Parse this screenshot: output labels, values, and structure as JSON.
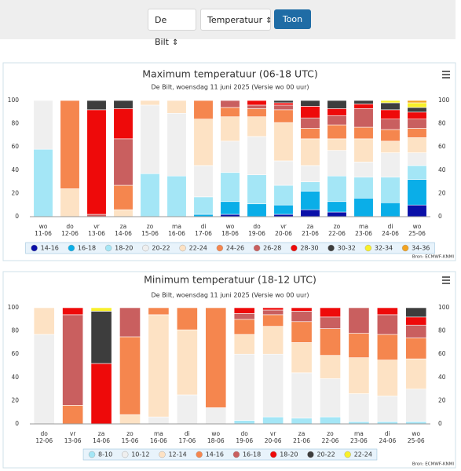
{
  "controls": {
    "location": "De Bilt",
    "variable": "Temperatuur",
    "button": "Toon"
  },
  "chart_data": [
    {
      "type": "stacked-bar",
      "title": "Maximum temperatuur (06-18 UTC)",
      "subtitle": "De Bilt, woensdag 11 juni 2025 (Versie wo 00 uur)",
      "credit": "Bron: ECMWF-KNMI",
      "categories": [
        [
          "wo",
          "11-06"
        ],
        [
          "do",
          "12-06"
        ],
        [
          "vr",
          "13-06"
        ],
        [
          "za",
          "14-06"
        ],
        [
          "zo",
          "15-06"
        ],
        [
          "ma",
          "16-06"
        ],
        [
          "di",
          "17-06"
        ],
        [
          "wo",
          "18-06"
        ],
        [
          "do",
          "19-06"
        ],
        [
          "vr",
          "20-06"
        ],
        [
          "za",
          "21-06"
        ],
        [
          "zo",
          "22-06"
        ],
        [
          "ma",
          "23-06"
        ],
        [
          "di",
          "24-06"
        ],
        [
          "wo",
          "25-06"
        ]
      ],
      "ylim": [
        0,
        100
      ],
      "yticks": [
        0,
        20,
        40,
        60,
        80,
        100
      ],
      "grid": false,
      "series": [
        {
          "name": "14-16",
          "color": "#0a10a8",
          "values": [
            0,
            0,
            0,
            0,
            0,
            0,
            0,
            2,
            0,
            2,
            6,
            4,
            0,
            0,
            10
          ]
        },
        {
          "name": "16-18",
          "color": "#0aaee8",
          "values": [
            0,
            0,
            0,
            0,
            0,
            0,
            2,
            11,
            11,
            8,
            16,
            9,
            16,
            12,
            22
          ]
        },
        {
          "name": "18-20",
          "color": "#a4e6f6",
          "values": [
            58,
            0,
            0,
            0,
            37,
            35,
            15,
            25,
            25,
            17,
            8,
            22,
            18,
            22,
            12
          ]
        },
        {
          "name": "20-22",
          "color": "#efefef",
          "values": [
            42,
            0,
            0,
            0,
            59,
            54,
            27,
            27,
            33,
            21,
            14,
            22,
            13,
            21,
            11
          ]
        },
        {
          "name": "22-24",
          "color": "#fde2c4",
          "values": [
            0,
            24,
            0,
            6,
            4,
            11,
            40,
            21,
            17,
            33,
            23,
            10,
            20,
            10,
            13
          ]
        },
        {
          "name": "24-26",
          "color": "#f5864e",
          "values": [
            0,
            76,
            0,
            21,
            0,
            0,
            16,
            8,
            7,
            11,
            9,
            12,
            10,
            10,
            8
          ]
        },
        {
          "name": "26-28",
          "color": "#c95f5f",
          "values": [
            0,
            0,
            2,
            40,
            0,
            0,
            0,
            6,
            3,
            4,
            9,
            8,
            16,
            9,
            8
          ]
        },
        {
          "name": "28-30",
          "color": "#ee0a0a",
          "values": [
            0,
            0,
            90,
            26,
            0,
            0,
            0,
            0,
            4,
            2,
            10,
            6,
            4,
            8,
            6
          ]
        },
        {
          "name": "30-32",
          "color": "#3d3d3d",
          "values": [
            0,
            0,
            8,
            7,
            0,
            0,
            0,
            0,
            0,
            2,
            5,
            7,
            3,
            6,
            4
          ]
        },
        {
          "name": "32-34",
          "color": "#f8f02a",
          "values": [
            0,
            0,
            0,
            0,
            0,
            0,
            0,
            0,
            0,
            0,
            0,
            0,
            0,
            2,
            4
          ]
        },
        {
          "name": "34-36",
          "color": "#f2a321",
          "values": [
            0,
            0,
            0,
            0,
            0,
            0,
            0,
            0,
            0,
            0,
            0,
            0,
            0,
            0,
            2
          ]
        }
      ]
    },
    {
      "type": "stacked-bar",
      "title": "Minimum temperatuur (18-12 UTC)",
      "subtitle": "De Bilt, woensdag 11 juni 2025 (Versie wo 00 uur)",
      "credit": "Bron: ECMWF-KNMI",
      "categories": [
        [
          "do",
          "12-06"
        ],
        [
          "vr",
          "13-06"
        ],
        [
          "za",
          "14-06"
        ],
        [
          "zo",
          "15-06"
        ],
        [
          "ma",
          "16-06"
        ],
        [
          "di",
          "17-06"
        ],
        [
          "wo",
          "18-06"
        ],
        [
          "do",
          "19-06"
        ],
        [
          "vr",
          "20-06"
        ],
        [
          "za",
          "21-06"
        ],
        [
          "zo",
          "22-06"
        ],
        [
          "ma",
          "23-06"
        ],
        [
          "di",
          "24-06"
        ],
        [
          "wo",
          "25-06"
        ]
      ],
      "ylim": [
        0,
        100
      ],
      "yticks": [
        0,
        20,
        40,
        60,
        80,
        100
      ],
      "grid": false,
      "series": [
        {
          "name": "8-10",
          "color": "#a4e6f6",
          "values": [
            0,
            0,
            0,
            0,
            0,
            0,
            0,
            3,
            6,
            5,
            6,
            2,
            2,
            2
          ]
        },
        {
          "name": "10-12",
          "color": "#efefef",
          "values": [
            77,
            0,
            0,
            0,
            6,
            25,
            14,
            57,
            54,
            39,
            33,
            24,
            22,
            28
          ]
        },
        {
          "name": "12-14",
          "color": "#fde2c4",
          "values": [
            23,
            0,
            0,
            8,
            88,
            56,
            0,
            17,
            24,
            26,
            20,
            31,
            31,
            26
          ]
        },
        {
          "name": "14-16",
          "color": "#f5864e",
          "values": [
            0,
            16,
            0,
            67,
            6,
            19,
            86,
            13,
            10,
            18,
            23,
            21,
            22,
            18
          ]
        },
        {
          "name": "16-18",
          "color": "#c95f5f",
          "values": [
            0,
            78,
            0,
            25,
            0,
            0,
            0,
            5,
            4,
            9,
            10,
            22,
            17,
            11
          ]
        },
        {
          "name": "18-20",
          "color": "#ee0a0a",
          "values": [
            0,
            6,
            52,
            0,
            0,
            0,
            0,
            5,
            2,
            3,
            8,
            0,
            6,
            7
          ]
        },
        {
          "name": "20-22",
          "color": "#3d3d3d",
          "values": [
            0,
            0,
            45,
            0,
            0,
            0,
            0,
            0,
            0,
            0,
            0,
            0,
            0,
            8
          ]
        },
        {
          "name": "22-24",
          "color": "#f8f02a",
          "values": [
            0,
            0,
            3,
            0,
            0,
            0,
            0,
            0,
            0,
            0,
            0,
            0,
            0,
            0
          ]
        }
      ]
    }
  ]
}
